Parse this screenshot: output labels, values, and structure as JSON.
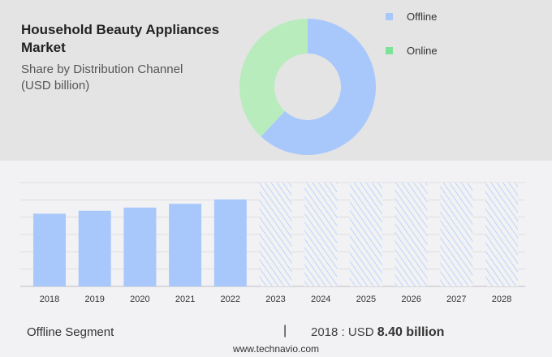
{
  "header": {
    "title": "Household Beauty Appliances Market",
    "subtitle": "Share by Distribution Channel (USD billion)"
  },
  "chart_data": [
    {
      "type": "pie",
      "donut": true,
      "labels": [
        "Offline",
        "Online"
      ],
      "values": [
        62,
        38
      ],
      "colors": [
        "#a8c8fc",
        "#b8ecbc"
      ],
      "legend_colors": [
        "#a8c8fc",
        "#7ee29a"
      ],
      "legend": "top-right"
    },
    {
      "type": "bar",
      "categories": [
        "2018",
        "2019",
        "2020",
        "2021",
        "2022",
        "2023",
        "2024",
        "2025",
        "2026",
        "2027",
        "2028"
      ],
      "values": [
        8.4,
        8.74,
        9.11,
        9.55,
        10.05,
        null,
        null,
        null,
        null,
        null,
        null
      ],
      "forecast_categories": [
        "2023",
        "2024",
        "2025",
        "2026",
        "2027",
        "2028"
      ],
      "ylim": [
        0,
        12
      ],
      "grid": true,
      "color": "#a8c8fc",
      "forecast_style": "hatched"
    }
  ],
  "footer": {
    "segment": "Offline Segment",
    "separator": "|",
    "year_label": "2018 : USD",
    "value": "8.40 billion",
    "site": "www.technavio.com"
  }
}
